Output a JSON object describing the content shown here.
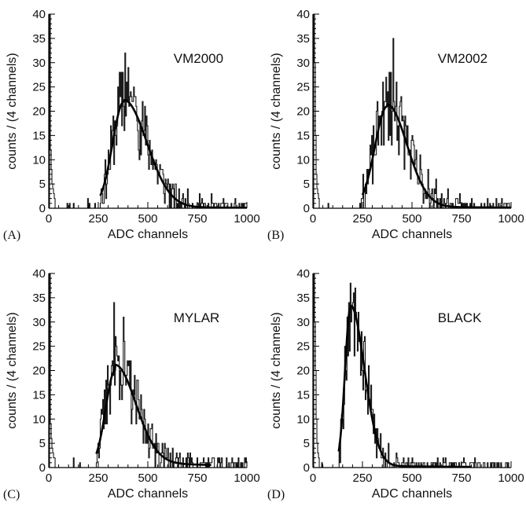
{
  "chart_data": [
    {
      "type": "histogram",
      "panel_label": "(A)",
      "tag": "VM2000",
      "xlabel": "ADC channels",
      "ylabel": "counts / (4 channels)",
      "xlim": [
        0,
        1000
      ],
      "ylim": [
        0,
        40
      ],
      "xticks": [
        "0",
        "250",
        "500",
        "750",
        "1000"
      ],
      "yticks": [
        "0",
        "5",
        "10",
        "15",
        "20",
        "25",
        "30",
        "35",
        "40"
      ],
      "bin_width": 4,
      "fit": {
        "peak_x": 380,
        "peak_y": 22,
        "sigma_left": 58,
        "sigma_right": 115,
        "baseline": 0.3,
        "x_start": 260,
        "x_end": 1000
      },
      "noise_seed": 11,
      "series": [
        {
          "x": [
            2,
            6,
            10,
            14,
            18,
            22,
            26,
            30
          ],
          "y": [
            0,
            40,
            12,
            8,
            5,
            4,
            3,
            2
          ]
        },
        {
          "x": [
            360,
            372,
            384,
            392,
            400,
            412,
            424,
            440,
            460,
            480,
            520,
            560,
            600,
            640,
            700,
            760,
            820,
            880,
            940
          ],
          "y": [
            23,
            28,
            32,
            26,
            29,
            24,
            22,
            21,
            17,
            16,
            12,
            9,
            6,
            5,
            4,
            3,
            3,
            2,
            2
          ]
        }
      ]
    },
    {
      "type": "histogram",
      "panel_label": "(B)",
      "tag": "VM2002",
      "xlabel": "ADC channels",
      "ylabel": "counts / (4 channels)",
      "xlim": [
        0,
        1000
      ],
      "ylim": [
        0,
        40
      ],
      "xticks": [
        "0",
        "250",
        "500",
        "750",
        "1000"
      ],
      "yticks": [
        "0",
        "5",
        "10",
        "15",
        "20",
        "25",
        "30",
        "35",
        "40"
      ],
      "bin_width": 4,
      "fit": {
        "peak_x": 375,
        "peak_y": 21,
        "sigma_left": 62,
        "sigma_right": 100,
        "baseline": 0.4,
        "x_start": 250,
        "x_end": 1000
      },
      "noise_seed": 23,
      "series": [
        {
          "x": [
            2,
            6,
            10,
            14,
            18,
            22,
            26,
            30
          ],
          "y": [
            0,
            40,
            30,
            15,
            7,
            4,
            3,
            2
          ]
        },
        {
          "x": [
            340,
            360,
            376,
            392,
            404,
            420,
            436,
            452,
            470,
            500,
            540,
            580,
            620,
            680,
            740,
            800,
            880,
            950
          ],
          "y": [
            19,
            22,
            24,
            28,
            35,
            26,
            21,
            19,
            17,
            15,
            11,
            8,
            6,
            4,
            3,
            2,
            2,
            1
          ]
        }
      ]
    },
    {
      "type": "histogram",
      "panel_label": "(C)",
      "tag": "MYLAR",
      "xlabel": "ADC channels",
      "ylabel": "counts / (4 channels)",
      "xlim": [
        0,
        1000
      ],
      "ylim": [
        0,
        40
      ],
      "xticks": [
        "0",
        "250",
        "500",
        "750",
        "1000"
      ],
      "yticks": [
        "0",
        "5",
        "10",
        "15",
        "20",
        "25",
        "30",
        "35",
        "40"
      ],
      "bin_width": 4,
      "fit": {
        "peak_x": 335,
        "peak_y": 20,
        "sigma_left": 48,
        "sigma_right": 105,
        "baseline": 1.2,
        "x_start": 240,
        "x_end": 820
      },
      "noise_seed": 37,
      "series": [
        {
          "x": [
            2,
            6,
            10,
            14,
            18,
            22,
            26,
            30
          ],
          "y": [
            0,
            40,
            9,
            6,
            4,
            3,
            2,
            2
          ]
        },
        {
          "x": [
            300,
            316,
            328,
            340,
            352,
            360,
            376,
            392,
            408,
            430,
            460,
            500,
            540,
            600,
            660,
            720,
            780
          ],
          "y": [
            17,
            21,
            34,
            25,
            23,
            20,
            31,
            19,
            17,
            15,
            11,
            9,
            7,
            4,
            3,
            2,
            2
          ]
        }
      ]
    },
    {
      "type": "histogram",
      "panel_label": "(D)",
      "tag": "BLACK",
      "xlabel": "ADC channels",
      "ylabel": "counts / (4 channels)",
      "xlim": [
        0,
        1000
      ],
      "ylim": [
        0,
        40
      ],
      "xticks": [
        "0",
        "250",
        "500",
        "750",
        "1000"
      ],
      "yticks": [
        "0",
        "5",
        "10",
        "15",
        "20",
        "25",
        "30",
        "35",
        "40"
      ],
      "bin_width": 4,
      "fit": {
        "peak_x": 190,
        "peak_y": 33,
        "sigma_left": 28,
        "sigma_right": 70,
        "baseline": 0.4,
        "x_start": 130,
        "x_end": 800
      },
      "noise_seed": 53,
      "series": [
        {
          "x": [
            2,
            6,
            10,
            14,
            18,
            22,
            26,
            30
          ],
          "y": [
            0,
            40,
            30,
            20,
            10,
            5,
            3,
            2
          ]
        },
        {
          "x": [
            160,
            172,
            180,
            188,
            196,
            204,
            212,
            220,
            232,
            248,
            270,
            300,
            340,
            380,
            420,
            480,
            560,
            640,
            720
          ],
          "y": [
            25,
            31,
            34,
            38,
            33,
            36,
            37,
            30,
            26,
            20,
            16,
            12,
            7,
            5,
            3,
            2,
            1,
            1,
            1
          ]
        }
      ]
    }
  ]
}
